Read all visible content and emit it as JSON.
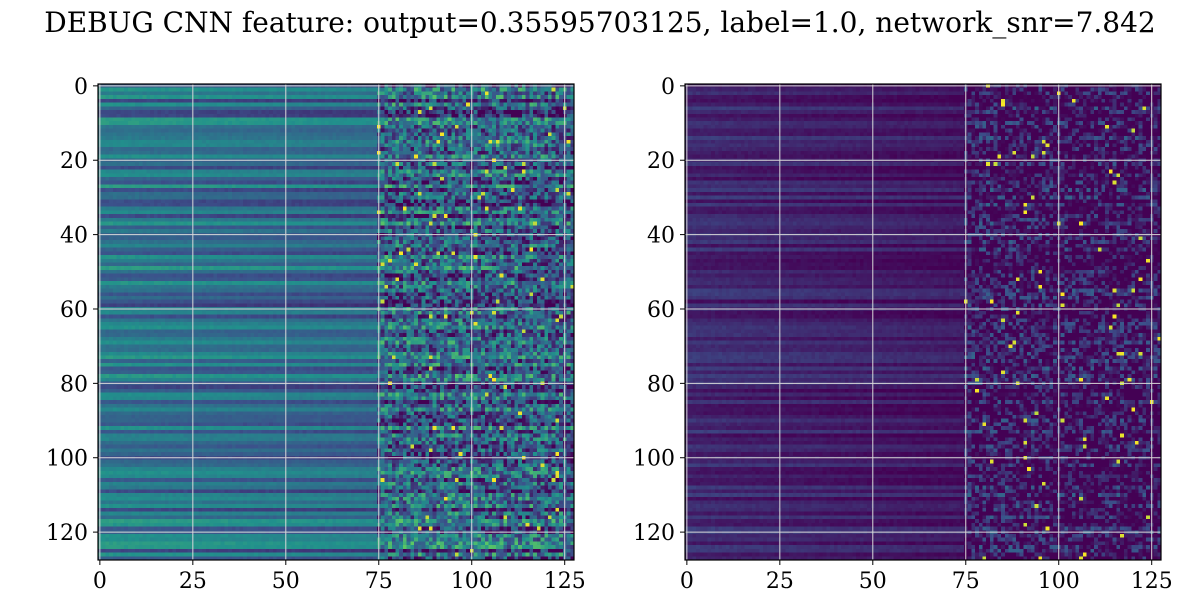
{
  "figure_title": "DEBUG CNN feature: output=0.35595703125, label=1.0, network_snr=7.842",
  "colormap": [
    "#440154",
    "#3b528b",
    "#21918c",
    "#5ec962",
    "#fde725"
  ],
  "chart_data": [
    {
      "type": "heatmap",
      "title": "",
      "xlabel": "",
      "ylabel": "",
      "rows": 128,
      "cols": 128,
      "xlim": [
        0,
        127
      ],
      "ylim": [
        127,
        0
      ],
      "xticks": [
        0,
        25,
        50,
        75,
        100,
        125
      ],
      "yticks": [
        0,
        20,
        40,
        60,
        80,
        100,
        120
      ],
      "grid": true,
      "value_range": [
        0,
        1
      ],
      "base_level_left": 0.38,
      "base_level_right": 0.28,
      "noise_start_col": 75,
      "seed": 7
    },
    {
      "type": "heatmap",
      "title": "",
      "xlabel": "",
      "ylabel": "",
      "rows": 128,
      "cols": 128,
      "xlim": [
        0,
        127
      ],
      "ylim": [
        127,
        0
      ],
      "xticks": [
        0,
        25,
        50,
        75,
        100,
        125
      ],
      "yticks": [
        0,
        20,
        40,
        60,
        80,
        100,
        120
      ],
      "grid": true,
      "value_range": [
        0,
        1
      ],
      "base_level_left": 0.12,
      "base_level_right": 0.02,
      "noise_start_col": 75,
      "seed": 13
    }
  ]
}
